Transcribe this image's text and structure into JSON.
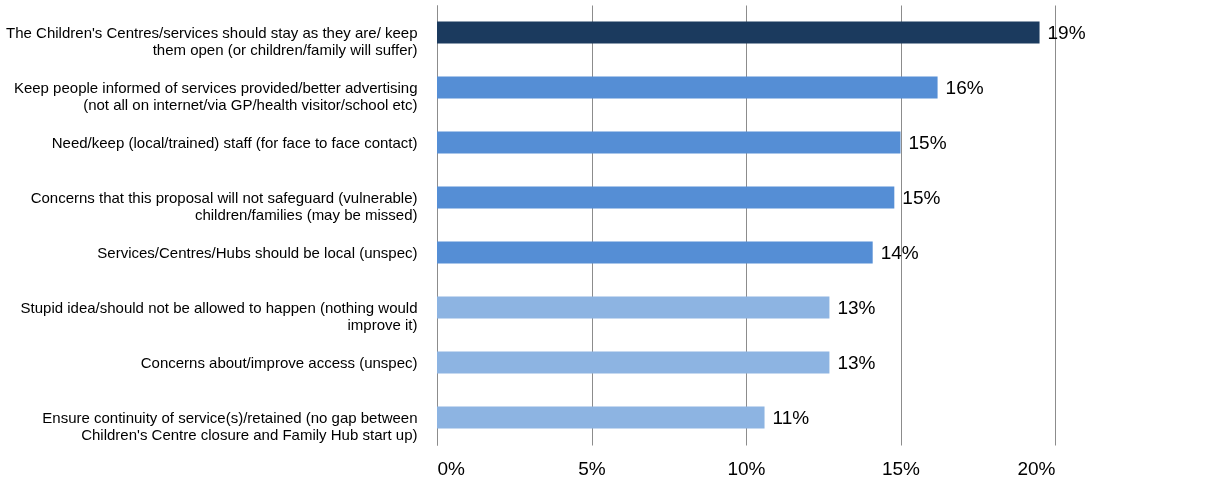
{
  "chart_data": {
    "type": "bar",
    "orientation": "horizontal",
    "categories": [
      "The Children's Centres/services should stay as they are/ keep them open (or children/family will suffer)",
      "Keep people informed of services provided/better advertising (not all on internet/via GP/health visitor/school etc)",
      "Need/keep (local/trained) staff (for face to face contact)",
      "Concerns that this proposal will not safeguard (vulnerable) children/families (may be missed)",
      "Services/Centres/Hubs should be local (unspec)",
      "Stupid idea/should not be allowed to happen (nothing would improve it)",
      "Concerns about/improve access (unspec)",
      "Ensure continuity of service(s)/retained (no gap between Children's Centre closure and Family Hub start up)"
    ],
    "values": [
      19.5,
      16.2,
      15.0,
      14.8,
      14.1,
      12.7,
      12.7,
      10.6
    ],
    "value_labels": [
      "19%",
      "16%",
      "15%",
      "15%",
      "14%",
      "13%",
      "13%",
      "11%"
    ],
    "colors": [
      "#1b3a5e",
      "#558ed5",
      "#558ed5",
      "#558ed5",
      "#558ed5",
      "#8db4e2",
      "#8db4e2",
      "#8db4e2"
    ],
    "xlim": [
      0,
      20
    ],
    "xticks": [
      {
        "value": 0,
        "label": "0%"
      },
      {
        "value": 5,
        "label": "5%"
      },
      {
        "value": 10,
        "label": "10%"
      },
      {
        "value": 15,
        "label": "15%"
      },
      {
        "value": 20,
        "label": "20%"
      }
    ],
    "grid": "x"
  }
}
